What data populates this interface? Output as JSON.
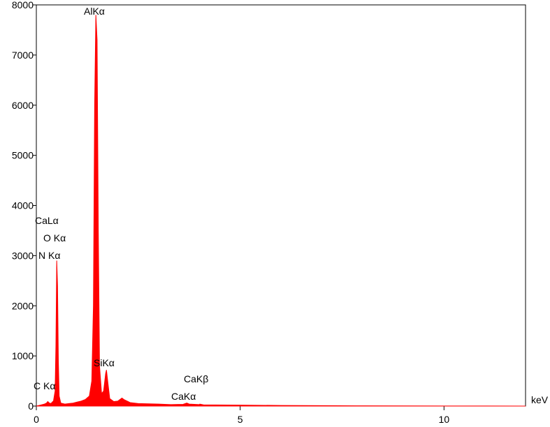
{
  "chart_data": {
    "type": "area",
    "x_label": "keV",
    "color": "#ff0000",
    "x": [
      0.0,
      0.1,
      0.2,
      0.25,
      0.28,
      0.32,
      0.36,
      0.39,
      0.42,
      0.46,
      0.48,
      0.5,
      0.52,
      0.54,
      0.56,
      0.6,
      0.7,
      0.8,
      0.9,
      1.0,
      1.1,
      1.2,
      1.3,
      1.36,
      1.4,
      1.43,
      1.46,
      1.49,
      1.52,
      1.55,
      1.6,
      1.65,
      1.7,
      1.72,
      1.75,
      1.8,
      1.9,
      2.0,
      2.1,
      2.15,
      2.3,
      2.5,
      3.0,
      3.3,
      3.6,
      3.69,
      3.75,
      4.0,
      4.01,
      4.1,
      5.0,
      6.0,
      7.0,
      8.0,
      9.0,
      10,
      11,
      12
    ],
    "values": [
      0,
      20,
      40,
      60,
      90,
      60,
      50,
      80,
      100,
      300,
      1200,
      2900,
      2400,
      900,
      200,
      60,
      40,
      50,
      60,
      80,
      100,
      130,
      200,
      500,
      2000,
      6000,
      7800,
      7300,
      3500,
      800,
      250,
      300,
      650,
      720,
      500,
      150,
      90,
      100,
      160,
      130,
      70,
      50,
      40,
      30,
      35,
      60,
      40,
      30,
      40,
      25,
      20,
      12,
      8,
      5,
      3,
      2,
      1,
      0
    ],
    "xlim": [
      0,
      12
    ],
    "xticks": [
      0,
      5,
      10
    ],
    "ylim": [
      0,
      8000
    ],
    "yticks": [
      0,
      1000,
      2000,
      3000,
      4000,
      5000,
      6000,
      7000,
      8000
    ],
    "annotations": [
      "AlKα",
      "CaLα",
      "O Kα",
      "N Kα",
      "SiKα",
      "C Kα",
      "CaKβ",
      "CaKα"
    ]
  }
}
